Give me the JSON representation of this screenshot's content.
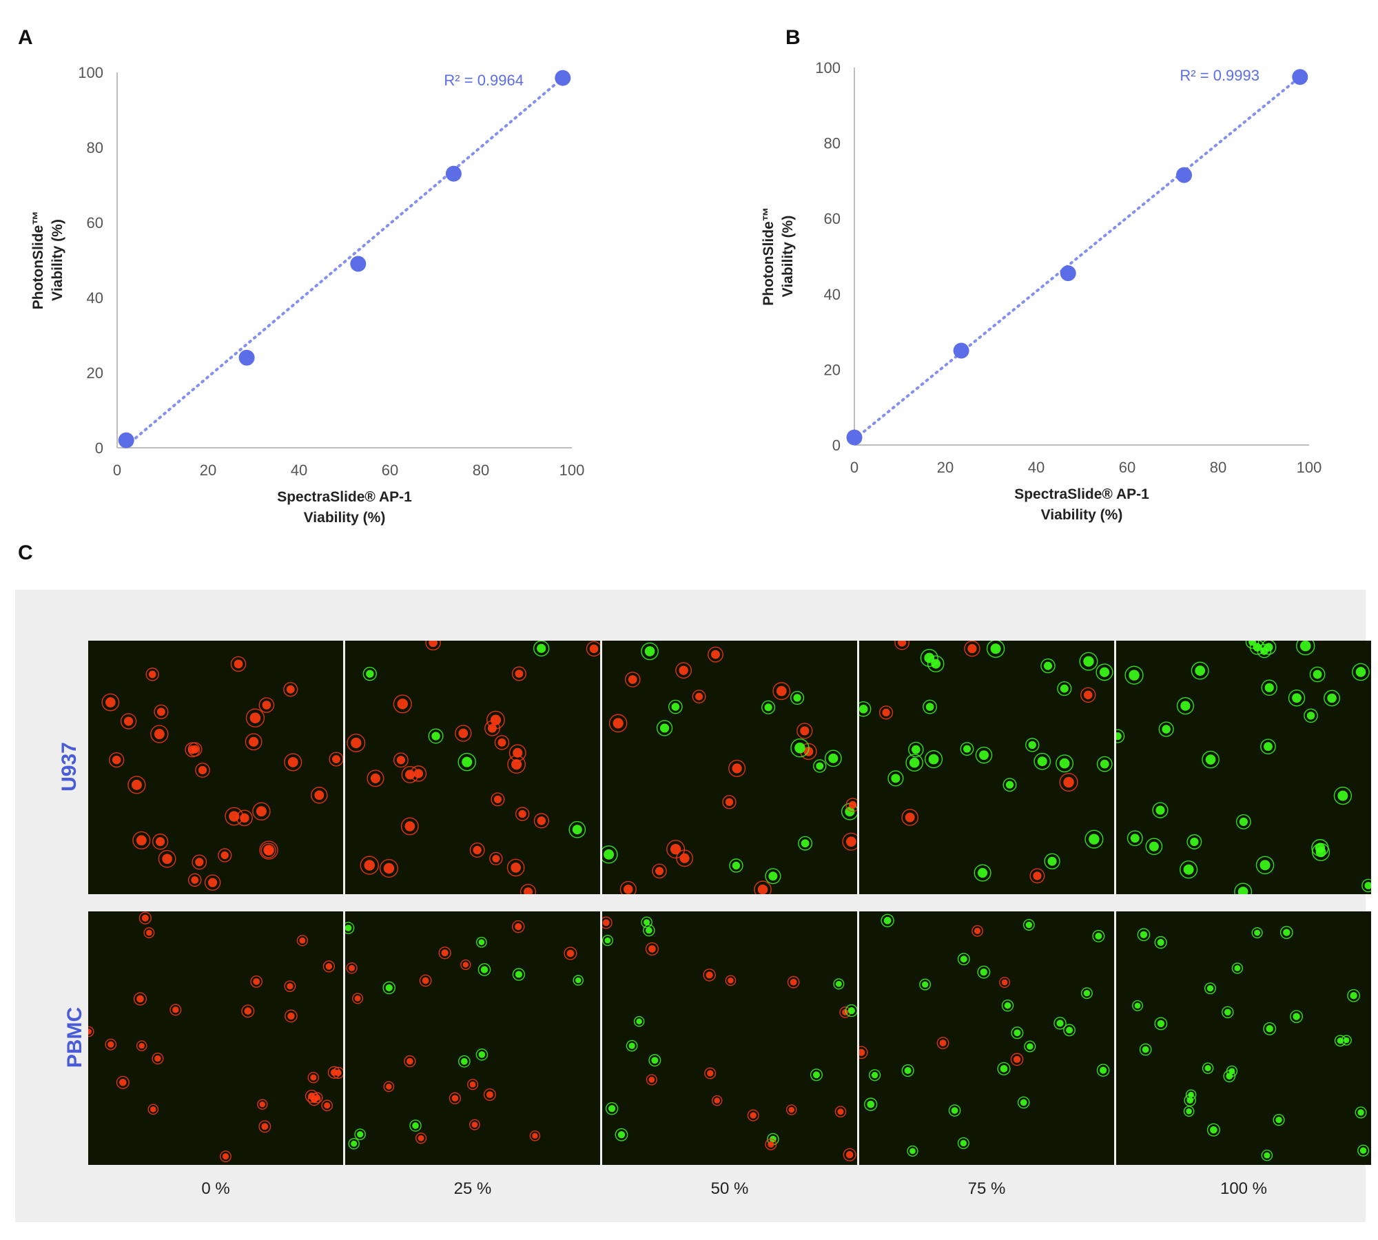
{
  "panels": {
    "a": "A",
    "b": "B",
    "c": "C"
  },
  "chart_data": [
    {
      "type": "scatter",
      "panel": "A",
      "xlabel_lines": [
        "SpectraSlide® AP-1",
        "Viability (%)"
      ],
      "ylabel_lines": [
        "PhotonSlide™",
        "Viability (%)"
      ],
      "xlim": [
        0,
        100
      ],
      "ylim": [
        0,
        100
      ],
      "xticks": [
        "0",
        "20",
        "40",
        "60",
        "80",
        "100"
      ],
      "yticks": [
        "0",
        "20",
        "40",
        "60",
        "80",
        "100"
      ],
      "points": [
        {
          "x": 2,
          "y": 2
        },
        {
          "x": 28.5,
          "y": 24
        },
        {
          "x": 53,
          "y": 49
        },
        {
          "x": 74,
          "y": 73
        },
        {
          "x": 98,
          "y": 98.5
        }
      ],
      "trendline": {
        "x": [
          2,
          98
        ],
        "y": [
          0.5,
          98.5
        ]
      },
      "r2_label": "R² = 0.9964",
      "point_color": "#5b6ee8",
      "grid": false
    },
    {
      "type": "scatter",
      "panel": "B",
      "xlabel_lines": [
        "SpectraSlide® AP-1",
        "Viability (%)"
      ],
      "ylabel_lines": [
        "PhotonSlide™",
        "Viability (%)"
      ],
      "xlim": [
        0,
        100
      ],
      "ylim": [
        0,
        100
      ],
      "xticks": [
        "0",
        "20",
        "40",
        "60",
        "80",
        "100"
      ],
      "yticks": [
        "0",
        "20",
        "40",
        "60",
        "80",
        "100"
      ],
      "points": [
        {
          "x": 0,
          "y": 2
        },
        {
          "x": 23.5,
          "y": 25
        },
        {
          "x": 47,
          "y": 45.5
        },
        {
          "x": 72.5,
          "y": 71.5
        },
        {
          "x": 98,
          "y": 97.5
        }
      ],
      "trendline": {
        "x": [
          0,
          98
        ],
        "y": [
          1.5,
          97.5
        ]
      },
      "r2_label": "R² = 0.9993",
      "point_color": "#5b6ee8",
      "grid": false
    }
  ],
  "gallery": {
    "rows": [
      "U937",
      "PBMC"
    ],
    "columns": [
      "0 %",
      "25 %",
      "50 %",
      "75 %",
      "100 %"
    ],
    "live_color": "#3cff1a",
    "dead_color": "#ff3a12"
  }
}
